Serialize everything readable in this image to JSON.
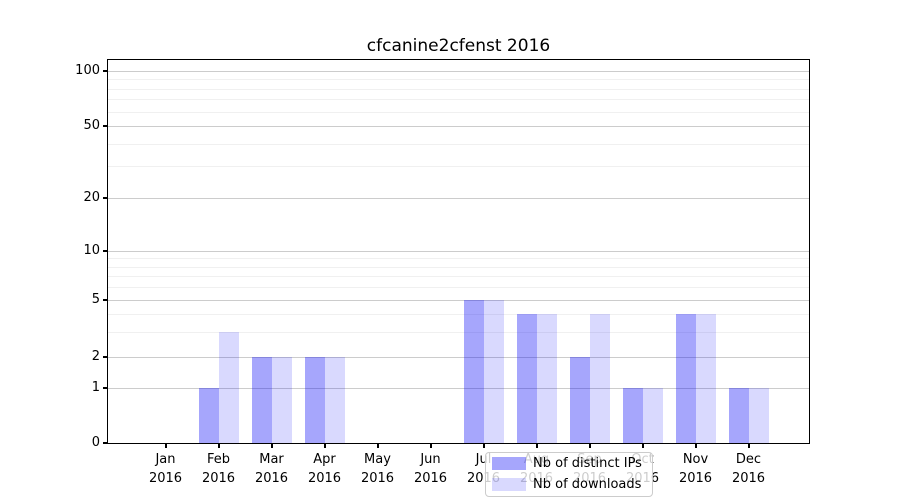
{
  "chart_data": {
    "type": "bar",
    "title": "cfcanine2cfenst 2016",
    "categories": [
      "Jan",
      "Feb",
      "Mar",
      "Apr",
      "May",
      "Jun",
      "Jul",
      "Aug",
      "Sep",
      "Oct",
      "Nov",
      "Dec"
    ],
    "year_label": "2016",
    "series": [
      {
        "name": "Nb of distinct IPs",
        "values": [
          0,
          1,
          2,
          2,
          0,
          0,
          5,
          4,
          2,
          1,
          4,
          1
        ],
        "color": "rgba(0,0,245,0.35)"
      },
      {
        "name": "Nb of downloads",
        "values": [
          0,
          3,
          2,
          2,
          0,
          0,
          5,
          4,
          4,
          1,
          4,
          1
        ],
        "color": "rgba(0,0,245,0.15)"
      }
    ],
    "xlabel": "",
    "ylabel": "",
    "y_axis": {
      "scale": "log",
      "ticks": [
        0,
        1,
        2,
        5,
        10,
        20,
        50,
        100
      ],
      "tick_labels": [
        "0",
        "1",
        "2",
        "5",
        "10",
        "20",
        "50",
        "100"
      ],
      "minor_ticks": [
        3,
        4,
        6,
        7,
        8,
        9,
        30,
        40,
        60,
        70,
        80,
        90
      ],
      "range_top": 118
    },
    "grid": {
      "horizontal_only": true,
      "major_color": "#cccccc",
      "minor_color": "#f0f0f0"
    },
    "legend": {
      "position": "lower-center",
      "entries": [
        "Nb of distinct IPs",
        "Nb of downloads"
      ]
    }
  }
}
